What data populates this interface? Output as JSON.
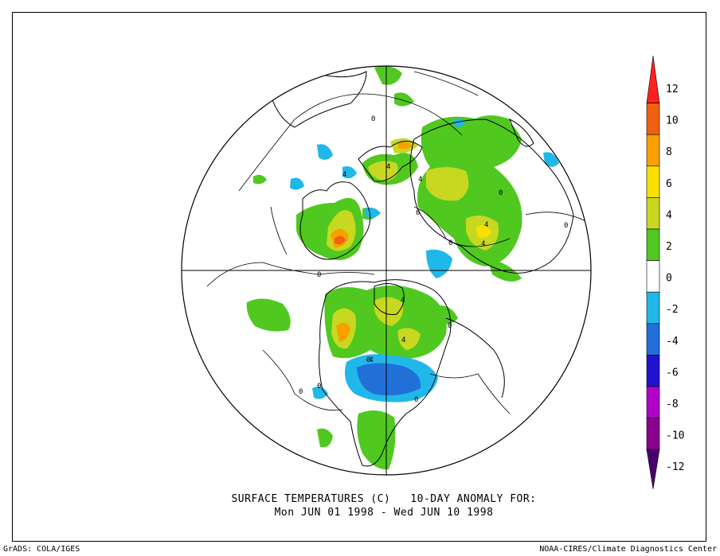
{
  "title": {
    "line1": "SURFACE TEMPERATURES (C)   10-DAY ANOMALY FOR:",
    "line2": "Mon JUN 01 1998 - Wed JUN 10 1998"
  },
  "footer": {
    "left": "GrADS: COLA/IGES",
    "right": "NOAA-CIRES/Climate Diagnostics Center"
  },
  "colorbar": {
    "labels": [
      "12",
      "10",
      "8",
      "6",
      "4",
      "2",
      "0",
      "-2",
      "-4",
      "-6",
      "-8",
      "-10",
      "-12"
    ],
    "colors": [
      "#ff2020",
      "#f06010",
      "#f8a000",
      "#f8e000",
      "#c8d820",
      "#50c820",
      "#ffffff",
      "#20b8e8",
      "#2070d8",
      "#2010d0",
      "#b000c8",
      "#8c0090",
      "#4a0070"
    ]
  },
  "contour_labels": [
    "0",
    "0",
    "4",
    "4",
    "4",
    "4",
    "4",
    "0",
    "0",
    "0",
    "0",
    "0",
    "4",
    "4",
    "-4",
    "0",
    "0",
    "0",
    "0"
  ],
  "map": {
    "projection": "north polar stereographic",
    "land_color": "#ffffff",
    "outline_color": "#000000"
  }
}
